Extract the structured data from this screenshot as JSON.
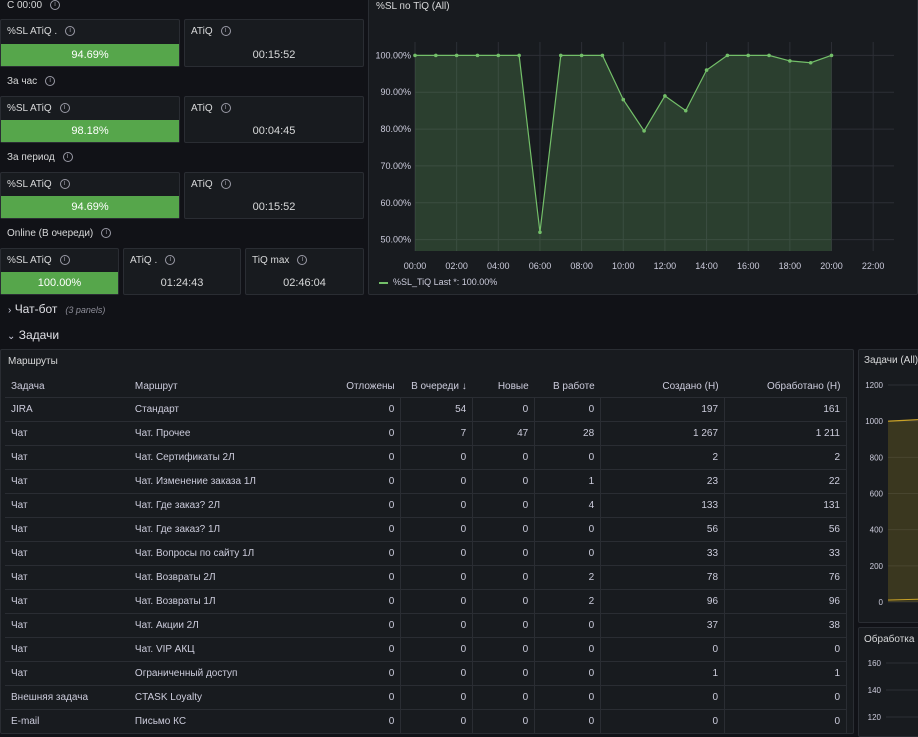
{
  "sections": {
    "since_start": "С 00:00",
    "hour": "За час",
    "period": "За период",
    "online": "Online (В очереди)"
  },
  "stats": {
    "s1_sl_title": "%SL ATiQ .",
    "s1_sl_value": "94.69%",
    "s1_atiq_title": "ATiQ",
    "s1_atiq_value": "00:15:52",
    "s2_sl_title": "%SL ATiQ",
    "s2_sl_value": "98.18%",
    "s2_atiq_title": "ATiQ",
    "s2_atiq_value": "00:04:45",
    "s3_sl_title": "%SL ATiQ",
    "s3_sl_value": "94.69%",
    "s3_atiq_title": "ATiQ",
    "s3_atiq_value": "00:15:52",
    "s4_sl_title": "%SL ATiQ",
    "s4_sl_value": "100.00%",
    "s4_atiq_title": "ATiQ .",
    "s4_atiq_value": "01:24:43",
    "s4_tiq_title": "TiQ max",
    "s4_tiq_value": "02:46:04"
  },
  "colors": {
    "green": "#56a64b",
    "line": "#73bf69",
    "bg": "#111217",
    "panel": "#181b1f"
  },
  "rows": {
    "chatbot": "Чат-бот",
    "chatbot_sub": "(3 panels)",
    "tasks": "Задачи"
  },
  "routes": {
    "title": "Маршруты",
    "columns": [
      "Задача",
      "Маршрут",
      "Отложены",
      "В очереди ↓",
      "Новые",
      "В работе",
      "Создано (Н)",
      "Обработано (Н)"
    ],
    "rows": [
      [
        "JIRA",
        "Стандарт",
        "0",
        "54",
        "0",
        "0",
        "197",
        "161"
      ],
      [
        "Чат",
        "Чат. Прочее",
        "0",
        "7",
        "47",
        "28",
        "1 267",
        "1 211"
      ],
      [
        "Чат",
        "Чат. Сертификаты 2Л",
        "0",
        "0",
        "0",
        "0",
        "2",
        "2"
      ],
      [
        "Чат",
        "Чат. Изменение заказа 1Л",
        "0",
        "0",
        "0",
        "1",
        "23",
        "22"
      ],
      [
        "Чат",
        "Чат. Где заказ? 2Л",
        "0",
        "0",
        "0",
        "4",
        "133",
        "131"
      ],
      [
        "Чат",
        "Чат. Где заказ? 1Л",
        "0",
        "0",
        "0",
        "0",
        "56",
        "56"
      ],
      [
        "Чат",
        "Чат. Вопросы по сайту 1Л",
        "0",
        "0",
        "0",
        "0",
        "33",
        "33"
      ],
      [
        "Чат",
        "Чат. Возвраты 2Л",
        "0",
        "0",
        "0",
        "2",
        "78",
        "76"
      ],
      [
        "Чат",
        "Чат. Возвраты 1Л",
        "0",
        "0",
        "0",
        "2",
        "96",
        "96"
      ],
      [
        "Чат",
        "Чат. Акции 2Л",
        "0",
        "0",
        "0",
        "0",
        "37",
        "38"
      ],
      [
        "Чат",
        "Чат. VIP АКЦ",
        "0",
        "0",
        "0",
        "0",
        "0",
        "0"
      ],
      [
        "Чат",
        "Ограниченный доступ",
        "0",
        "0",
        "0",
        "0",
        "1",
        "1"
      ],
      [
        "Внешняя задача",
        "CTASK Loyalty",
        "0",
        "0",
        "0",
        "0",
        "0",
        "0"
      ],
      [
        "E-mail",
        "Письмо КС",
        "0",
        "0",
        "0",
        "0",
        "0",
        "0"
      ]
    ]
  },
  "tasks_panel": {
    "title": "Задачи (All)",
    "yticks": [
      "1200",
      "1000",
      "800",
      "600",
      "400",
      "200",
      "0"
    ]
  },
  "processing_panel": {
    "title": "Обработка",
    "yticks": [
      "160",
      "140",
      "120"
    ]
  },
  "chart_data": {
    "type": "line",
    "title": "%SL по TiQ (All)",
    "x": [
      "00:00",
      "01:00",
      "02:00",
      "03:00",
      "04:00",
      "05:00",
      "06:00",
      "07:00",
      "08:00",
      "09:00",
      "10:00",
      "11:00",
      "12:00",
      "13:00",
      "14:00",
      "15:00",
      "16:00",
      "17:00",
      "18:00",
      "19:00",
      "20:00"
    ],
    "series": [
      {
        "name": "%SL_TiQ",
        "values": [
          100,
          100,
          100,
          100,
          100,
          100,
          52,
          100,
          100,
          100,
          88,
          79.5,
          89,
          85,
          96,
          100,
          100,
          100,
          98.5,
          98,
          100
        ]
      }
    ],
    "x_ticks": [
      "00:00",
      "02:00",
      "04:00",
      "06:00",
      "08:00",
      "10:00",
      "12:00",
      "14:00",
      "16:00",
      "18:00",
      "20:00",
      "22:00"
    ],
    "y_ticks": [
      "100.00%",
      "90.00%",
      "80.00%",
      "70.00%",
      "60.00%",
      "50.00%"
    ],
    "xlim": [
      0,
      23
    ],
    "ylim": [
      48,
      102
    ],
    "legend": "%SL_TiQ  Last *: 100.00%",
    "legend_position": "bottom-left",
    "grid": true
  }
}
